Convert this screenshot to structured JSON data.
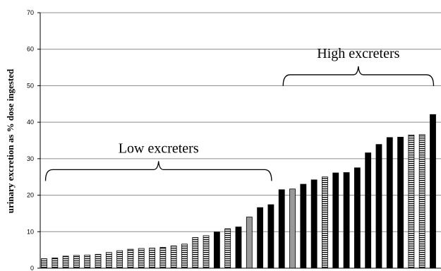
{
  "chart_data": {
    "type": "bar",
    "ylabel": "urinary excretion as % dose ingested",
    "xlabel": "",
    "title": "",
    "ylim": [
      0,
      70
    ],
    "yticks": [
      0,
      10,
      20,
      30,
      40,
      50,
      60,
      70
    ],
    "grid": true,
    "legend": "none",
    "fill_styles": {
      "black": "#000000",
      "gray": "#9a9a9a",
      "stripe": "horizontal-stripes"
    },
    "bars": [
      {
        "value": 2.6,
        "fill": "stripe"
      },
      {
        "value": 2.8,
        "fill": "stripe"
      },
      {
        "value": 3.3,
        "fill": "stripe"
      },
      {
        "value": 3.5,
        "fill": "stripe"
      },
      {
        "value": 3.6,
        "fill": "stripe"
      },
      {
        "value": 3.8,
        "fill": "stripe"
      },
      {
        "value": 4.3,
        "fill": "stripe"
      },
      {
        "value": 4.8,
        "fill": "stripe"
      },
      {
        "value": 5.2,
        "fill": "stripe"
      },
      {
        "value": 5.4,
        "fill": "stripe"
      },
      {
        "value": 5.5,
        "fill": "stripe"
      },
      {
        "value": 5.7,
        "fill": "stripe"
      },
      {
        "value": 6.1,
        "fill": "stripe"
      },
      {
        "value": 6.6,
        "fill": "stripe"
      },
      {
        "value": 8.4,
        "fill": "stripe"
      },
      {
        "value": 8.9,
        "fill": "stripe"
      },
      {
        "value": 9.9,
        "fill": "black"
      },
      {
        "value": 10.8,
        "fill": "stripe"
      },
      {
        "value": 11.3,
        "fill": "black"
      },
      {
        "value": 14.0,
        "fill": "gray"
      },
      {
        "value": 16.6,
        "fill": "black"
      },
      {
        "value": 17.4,
        "fill": "black"
      },
      {
        "value": 21.5,
        "fill": "black"
      },
      {
        "value": 21.7,
        "fill": "gray"
      },
      {
        "value": 23.0,
        "fill": "black"
      },
      {
        "value": 24.2,
        "fill": "black"
      },
      {
        "value": 25.0,
        "fill": "stripe"
      },
      {
        "value": 26.1,
        "fill": "black"
      },
      {
        "value": 26.2,
        "fill": "black"
      },
      {
        "value": 27.5,
        "fill": "black"
      },
      {
        "value": 31.6,
        "fill": "black"
      },
      {
        "value": 33.9,
        "fill": "black"
      },
      {
        "value": 35.8,
        "fill": "black"
      },
      {
        "value": 35.9,
        "fill": "black"
      },
      {
        "value": 36.5,
        "fill": "stripe"
      },
      {
        "value": 36.6,
        "fill": "stripe"
      },
      {
        "value": 42.1,
        "fill": "black"
      }
    ],
    "annotations": [
      {
        "text": "Low excreters",
        "from_bar": 0,
        "to_bar": 21,
        "bracket_at": 27
      },
      {
        "text": "High excreters",
        "from_bar": 22,
        "to_bar": 36,
        "bracket_at": 53
      }
    ]
  }
}
